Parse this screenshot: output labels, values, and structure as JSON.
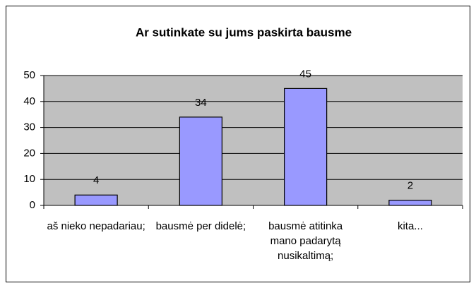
{
  "chart_data": {
    "type": "bar",
    "title": "Ar sutinkate su jums paskirta bausme",
    "categories": [
      "aš nieko nepadariau;",
      "bausmė per didelė;",
      "bausmė atitinka mano padarytą nusikaltimą;",
      "kita..."
    ],
    "values": [
      4,
      34,
      45,
      2
    ],
    "color": "#9999ff",
    "ylim": [
      0,
      50
    ],
    "yticks": [
      0,
      10,
      20,
      30,
      40,
      50
    ],
    "grid": true
  }
}
